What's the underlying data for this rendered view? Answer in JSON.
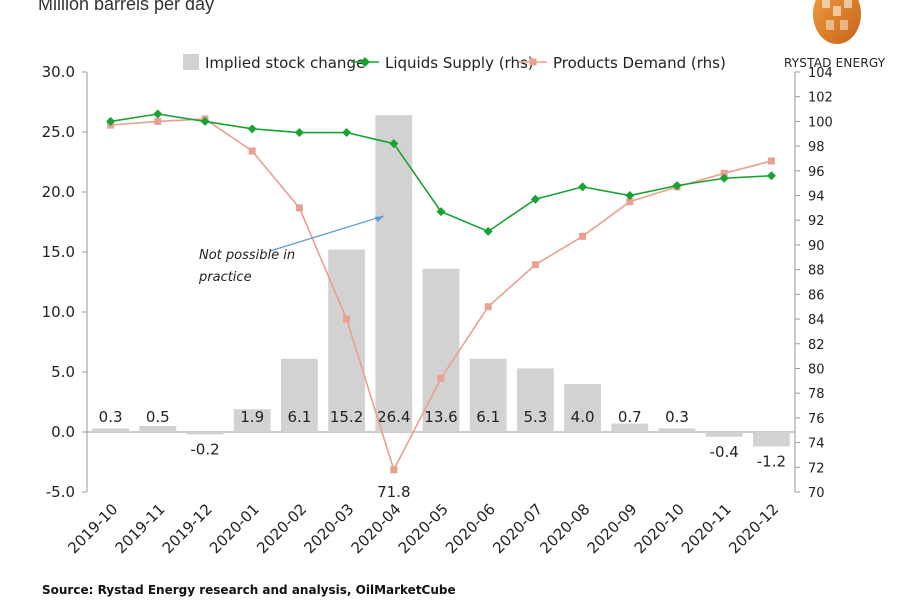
{
  "header": {
    "unit_title": "Million barrels per day",
    "brand": "RYSTAD ENERGY"
  },
  "footer": {
    "source": "Source: Rystad Energy research and analysis, OilMarketCube"
  },
  "colors": {
    "bars": "#d3d2d3",
    "supply": "#17a331",
    "demand": "#e8a08f",
    "annotation_arrow": "#5b9bd5",
    "logo_orange": "#e8862a"
  },
  "chart_data": {
    "type": "bar",
    "categories": [
      "2019-10",
      "2019-11",
      "2019-12",
      "2020-01",
      "2020-02",
      "2020-03",
      "2020-04",
      "2020-05",
      "2020-06",
      "2020-07",
      "2020-08",
      "2020-09",
      "2020-10",
      "2020-11",
      "2020-12"
    ],
    "series": [
      {
        "name": "Implied stock change",
        "type": "bar",
        "axis": "left",
        "values": [
          0.3,
          0.5,
          -0.2,
          1.9,
          6.1,
          15.2,
          26.4,
          13.6,
          6.1,
          5.3,
          4.0,
          0.7,
          0.3,
          -0.4,
          -1.2
        ],
        "data_labels": [
          "0.3",
          "0.5",
          "-0.2",
          "1.9",
          "6.1",
          "15.2",
          "26.4",
          "13.6",
          "6.1",
          "5.3",
          "4.0",
          "0.7",
          "0.3",
          "-0.4",
          "-1.2"
        ]
      },
      {
        "name": "Liquids Supply (rhs)",
        "type": "line",
        "axis": "right",
        "marker": "diamond",
        "values": [
          100.0,
          100.6,
          100.0,
          99.4,
          99.1,
          99.1,
          98.2,
          92.7,
          91.1,
          93.7,
          94.7,
          94.0,
          94.8,
          95.4,
          95.6
        ]
      },
      {
        "name": "Products Demand (rhs)",
        "type": "line",
        "axis": "right",
        "marker": "square",
        "values": [
          99.7,
          100.0,
          100.2,
          97.6,
          93.0,
          84.0,
          71.8,
          79.2,
          85.0,
          88.4,
          90.7,
          93.5,
          94.7,
          95.8,
          96.8
        ],
        "data_labels": [
          "",
          "",
          "",
          "",
          "",
          "",
          "71.8",
          "",
          "",
          "",
          "",
          "",
          "",
          "",
          ""
        ]
      }
    ],
    "left_axis": {
      "ylim": [
        -5,
        30
      ],
      "ticks": [
        "30.0",
        "25.0",
        "20.0",
        "15.0",
        "10.0",
        "5.0",
        "0.0",
        "-5.0"
      ],
      "tick_values": [
        30,
        25,
        20,
        15,
        10,
        5,
        0,
        -5
      ]
    },
    "right_axis": {
      "ylim": [
        70,
        104
      ],
      "ticks": [
        "104",
        "102",
        "100",
        "98",
        "96",
        "94",
        "92",
        "90",
        "88",
        "86",
        "84",
        "82",
        "80",
        "78",
        "76",
        "74",
        "72",
        "70"
      ],
      "tick_values": [
        104,
        102,
        100,
        98,
        96,
        94,
        92,
        90,
        88,
        86,
        84,
        82,
        80,
        78,
        76,
        74,
        72,
        70
      ]
    },
    "annotation": {
      "text_lines": [
        "Not possible in",
        "practice"
      ],
      "target_category": "2020-04",
      "target_value": 18.0
    },
    "legend_position": "top",
    "grid": false
  }
}
